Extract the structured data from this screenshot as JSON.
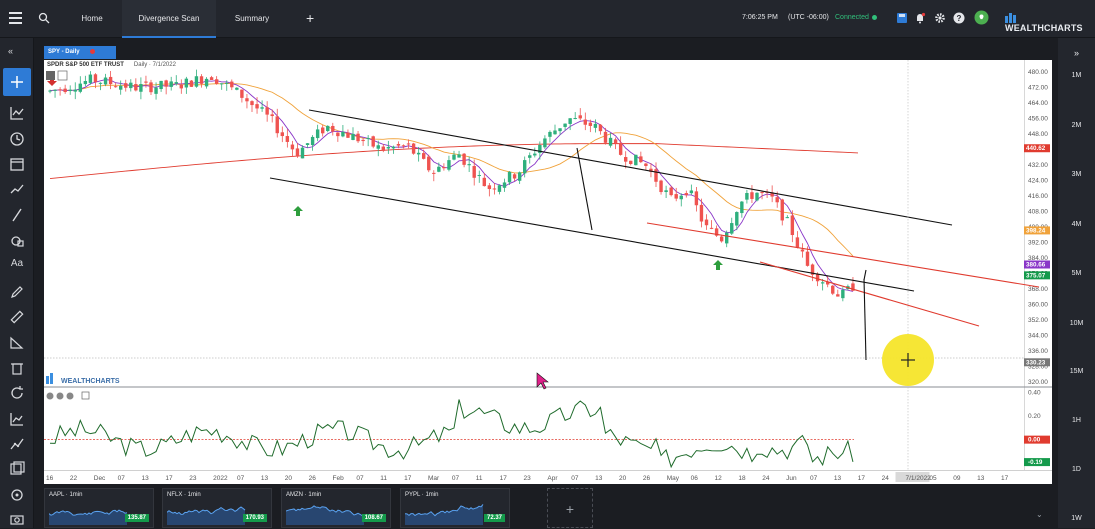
{
  "topbar": {
    "tabs": [
      {
        "label": "Home"
      },
      {
        "label": "Divergence Scan"
      },
      {
        "label": "Summary"
      }
    ],
    "clock": "7:06:25 PM",
    "timezone": "(UTC -06:00)",
    "connection": "Connected",
    "brand": "WEALTHCHARTS"
  },
  "rightbar": {
    "timeframes": [
      "1M",
      "2M",
      "3M",
      "4M",
      "5M",
      "10M",
      "15M",
      "1H",
      "1D",
      "1W"
    ]
  },
  "chart": {
    "symbol_tab": "SPY - Daily",
    "title": "SPDR S&P 500 ETF TRUST",
    "subtitle": "Daily · 7/1/2022",
    "watermark": "WEALTHCHARTS",
    "price_axis": [
      "480.00",
      "472.00",
      "464.00",
      "456.00",
      "448.00",
      "440.00",
      "432.00",
      "424.00",
      "416.00",
      "408.00",
      "400.00",
      "392.00",
      "384.00",
      "376.00",
      "368.00",
      "360.00",
      "352.00",
      "344.00",
      "336.00",
      "328.00",
      "320.00"
    ],
    "price_tags": [
      {
        "label": "440.62",
        "color": "#e03b2f"
      },
      {
        "label": "398.24",
        "color": "#f0a23a"
      },
      {
        "label": "380.66",
        "color": "#8a36c8"
      },
      {
        "label": "375.07",
        "color": "#149a4b"
      },
      {
        "label": "330.23",
        "color": "#777777"
      }
    ],
    "osc_axis": [
      "0.40",
      "0.20",
      "0.00",
      "-0.20"
    ],
    "osc_tags": [
      {
        "label": "0.00",
        "color": "#e03b2f"
      },
      {
        "label": "-0.19",
        "color": "#149a4b"
      }
    ],
    "date_axis": [
      "16",
      "22",
      "Dec",
      "07",
      "13",
      "17",
      "23",
      "2022",
      "07",
      "13",
      "20",
      "26",
      "Feb",
      "07",
      "11",
      "17",
      "Mar",
      "07",
      "11",
      "17",
      "23",
      "Apr",
      "07",
      "13",
      "20",
      "26",
      "May",
      "06",
      "12",
      "18",
      "24",
      "Jun",
      "07",
      "13",
      "17",
      "24",
      "7/1/2022",
      "05",
      "09",
      "13",
      "17"
    ]
  },
  "watchlist": [
    {
      "label": "AAPL · 1min",
      "price": "135.87"
    },
    {
      "label": "NFLX · 1min",
      "price": "170.93"
    },
    {
      "label": "AMZN · 1min",
      "price": "108.67"
    },
    {
      "label": "PYPL · 1min",
      "price": "72.37"
    }
  ],
  "colors": {
    "up": "#2eaf7d",
    "down": "#ef5350",
    "accent": "#2e7bd6",
    "ma_short": "#8a36c8",
    "ma_mid": "#f0a23a",
    "ma_long": "#e03b2f"
  }
}
